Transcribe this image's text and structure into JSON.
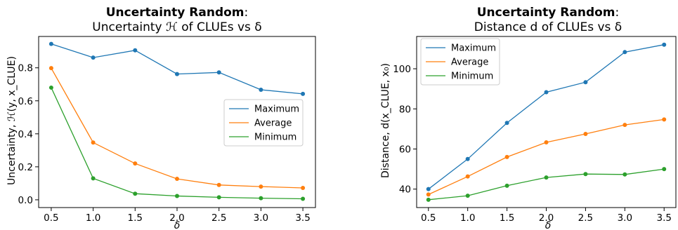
{
  "charts": [
    {
      "title_bold": "Uncertainty Random",
      "title_rest": ":",
      "subtitle": "Uncertainty ℋ of CLUEs vs δ",
      "xlabel": "δ",
      "ylabel": "Uncertainty, ℋ(y, x_CLUE)"
    },
    {
      "title_bold": "Uncertainty Random",
      "title_rest": ":",
      "subtitle": "Distance d of CLUEs vs δ",
      "xlabel": "δ",
      "ylabel": "Distance, d(x_CLUE, x₀)"
    }
  ],
  "chart_data": [
    {
      "type": "line",
      "x": [
        0.5,
        1.0,
        1.5,
        2.0,
        2.5,
        3.0,
        3.5
      ],
      "series": [
        {
          "name": "Maximum",
          "color": "#1f77b4",
          "values": [
            0.945,
            0.862,
            0.906,
            0.762,
            0.772,
            0.667,
            0.642
          ]
        },
        {
          "name": "Average",
          "color": "#ff7f0e",
          "values": [
            0.798,
            0.347,
            0.22,
            0.127,
            0.09,
            0.08,
            0.072
          ]
        },
        {
          "name": "Minimum",
          "color": "#2ca02c",
          "values": [
            0.68,
            0.13,
            0.037,
            0.023,
            0.015,
            0.01,
            0.006
          ]
        }
      ],
      "xticks": [
        "0.5",
        "1.0",
        "1.5",
        "2.0",
        "2.5",
        "3.0",
        "3.5"
      ],
      "yticks": [
        0.0,
        0.2,
        0.4,
        0.6,
        0.8
      ],
      "ytick_labels": [
        "0.0",
        "0.2",
        "0.4",
        "0.6",
        "0.8"
      ],
      "xlim": [
        0.35,
        3.65
      ],
      "ylim": [
        -0.047,
        0.99
      ],
      "legend": "center-right",
      "grid": false
    },
    {
      "type": "line",
      "x": [
        0.5,
        1.0,
        1.5,
        2.0,
        2.5,
        3.0,
        3.5
      ],
      "series": [
        {
          "name": "Maximum",
          "color": "#1f77b4",
          "values": [
            40.0,
            55.0,
            73.0,
            88.3,
            93.3,
            108.3,
            112.0
          ]
        },
        {
          "name": "Average",
          "color": "#ff7f0e",
          "values": [
            37.3,
            46.3,
            56.0,
            63.3,
            67.5,
            72.0,
            74.7
          ]
        },
        {
          "name": "Minimum",
          "color": "#2ca02c",
          "values": [
            34.7,
            36.7,
            41.7,
            45.8,
            47.5,
            47.3,
            50.0
          ]
        }
      ],
      "xticks": [
        "0.5",
        "1.0",
        "1.5",
        "2.0",
        "2.5",
        "3.0",
        "3.5"
      ],
      "yticks": [
        40,
        60,
        80,
        100
      ],
      "ytick_labels": [
        "40",
        "60",
        "80",
        "100"
      ],
      "xlim": [
        0.35,
        3.65
      ],
      "ylim": [
        30.8,
        116.1
      ],
      "legend": "top-left",
      "grid": false
    }
  ]
}
